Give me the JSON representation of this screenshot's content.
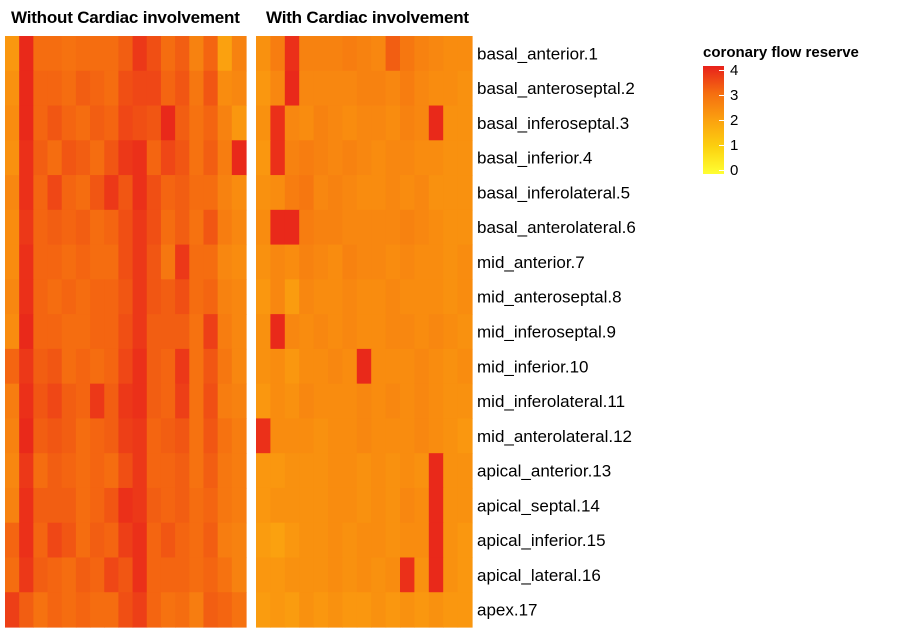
{
  "panels": {
    "left_title": "Without Cardiac involvement",
    "right_title": "With Cardiac involvement"
  },
  "legend": {
    "title": "coronary flow reserve",
    "ticks": [
      "4",
      "3",
      "2",
      "1",
      "0"
    ]
  },
  "chart_data": {
    "type": "heatmap",
    "value_range": [
      0,
      4
    ],
    "color_scale": [
      "#ffff33",
      "#fcd10f",
      "#fba10f",
      "#f56d10",
      "#e8211b"
    ],
    "rows": [
      "basal_anterior.1",
      "basal_anteroseptal.2",
      "basal_inferoseptal.3",
      "basal_inferior.4",
      "basal_inferolateral.5",
      "basal_anterolateral.6",
      "mid_anterior.7",
      "mid_anteroseptal.8",
      "mid_inferoseptal.9",
      "mid_inferior.10",
      "mid_inferolateral.11",
      "mid_anterolateral.12",
      "apical_anterior.13",
      "apical_septal.14",
      "apical_inferior.15",
      "apical_lateral.16",
      "apex.17"
    ],
    "groups": [
      {
        "name": "Without Cardiac involvement",
        "values": [
          [
            2.2,
            3.9,
            3.0,
            3.0,
            2.9,
            3.0,
            3.0,
            3.0,
            3.2,
            3.7,
            3.4,
            3.0,
            3.2,
            2.6,
            3.1,
            2.0,
            2.6
          ],
          [
            2.3,
            3.9,
            3.1,
            3.1,
            3.0,
            3.2,
            3.1,
            3.0,
            3.4,
            3.5,
            3.5,
            3.1,
            3.3,
            2.8,
            3.3,
            2.4,
            2.5
          ],
          [
            2.4,
            3.9,
            3.1,
            3.3,
            3.1,
            3.0,
            3.2,
            3.1,
            3.5,
            3.4,
            3.3,
            3.9,
            3.2,
            2.9,
            3.1,
            2.6,
            2.2
          ],
          [
            2.3,
            3.8,
            3.2,
            3.0,
            3.3,
            3.2,
            3.0,
            3.3,
            3.7,
            3.8,
            3.1,
            3.5,
            3.3,
            2.9,
            3.2,
            2.7,
            3.9
          ],
          [
            2.5,
            3.8,
            3.1,
            3.5,
            3.1,
            3.0,
            3.3,
            3.7,
            3.3,
            3.8,
            3.4,
            3.1,
            3.2,
            3.0,
            3.0,
            2.6,
            2.4
          ],
          [
            2.4,
            3.7,
            3.1,
            3.2,
            3.1,
            3.2,
            3.0,
            3.1,
            3.4,
            3.7,
            3.4,
            3.0,
            3.2,
            2.9,
            3.3,
            2.7,
            2.5
          ],
          [
            2.4,
            3.8,
            3.1,
            3.1,
            3.0,
            3.1,
            3.0,
            3.0,
            3.4,
            3.7,
            3.3,
            2.8,
            3.7,
            3.0,
            3.0,
            2.5,
            2.4
          ],
          [
            2.5,
            3.8,
            3.1,
            3.0,
            3.1,
            3.0,
            3.1,
            3.1,
            3.3,
            3.7,
            3.3,
            3.2,
            3.4,
            3.0,
            3.1,
            2.6,
            2.5
          ],
          [
            2.4,
            3.9,
            3.1,
            3.1,
            3.0,
            3.0,
            3.1,
            3.1,
            3.4,
            3.7,
            3.2,
            3.2,
            3.2,
            2.9,
            3.6,
            2.7,
            2.5
          ],
          [
            3.1,
            3.7,
            3.2,
            3.3,
            3.0,
            3.1,
            3.0,
            3.1,
            3.5,
            3.8,
            3.2,
            3.1,
            3.7,
            2.9,
            3.3,
            2.8,
            2.5
          ],
          [
            2.7,
            3.8,
            3.3,
            3.5,
            3.2,
            3.1,
            3.7,
            3.2,
            3.7,
            3.8,
            3.2,
            3.1,
            3.6,
            2.9,
            3.4,
            2.7,
            2.6
          ],
          [
            2.6,
            3.9,
            3.2,
            3.3,
            3.2,
            3.0,
            3.1,
            3.2,
            3.6,
            3.7,
            3.1,
            3.2,
            3.3,
            2.9,
            3.3,
            2.9,
            2.7
          ],
          [
            2.5,
            3.7,
            3.0,
            3.2,
            3.1,
            3.0,
            3.1,
            3.0,
            3.4,
            3.7,
            3.1,
            3.1,
            3.2,
            2.9,
            3.2,
            2.8,
            2.7
          ],
          [
            2.6,
            3.8,
            3.2,
            3.2,
            3.2,
            3.0,
            3.1,
            3.3,
            3.8,
            3.7,
            3.2,
            3.1,
            3.2,
            3.0,
            3.1,
            2.8,
            2.7
          ],
          [
            3.1,
            3.8,
            3.1,
            3.5,
            3.3,
            3.0,
            3.2,
            3.1,
            3.6,
            3.8,
            3.1,
            3.3,
            3.1,
            3.0,
            3.2,
            2.7,
            2.6
          ],
          [
            3.0,
            3.7,
            3.2,
            3.1,
            3.0,
            3.2,
            3.1,
            3.5,
            3.3,
            3.8,
            3.1,
            3.1,
            3.1,
            3.0,
            3.1,
            2.9,
            2.6
          ],
          [
            3.6,
            3.2,
            2.9,
            3.1,
            3.0,
            3.1,
            3.0,
            3.0,
            3.4,
            3.6,
            3.1,
            2.9,
            3.0,
            2.7,
            3.2,
            3.1,
            2.9
          ]
        ]
      },
      {
        "name": "With Cardiac involvement",
        "values": [
          [
            2.3,
            2.7,
            3.8,
            2.6,
            2.6,
            2.6,
            2.7,
            2.6,
            2.5,
            3.2,
            2.8,
            2.6,
            2.5,
            2.4,
            2.4
          ],
          [
            2.2,
            2.5,
            3.9,
            2.5,
            2.5,
            2.5,
            2.5,
            2.6,
            2.6,
            2.5,
            2.7,
            2.5,
            2.4,
            2.4,
            2.3
          ],
          [
            2.3,
            3.8,
            2.5,
            2.4,
            2.6,
            2.5,
            2.4,
            2.5,
            2.5,
            2.4,
            2.6,
            2.5,
            3.9,
            2.3,
            2.3
          ],
          [
            2.2,
            3.8,
            2.6,
            2.7,
            2.6,
            2.5,
            2.6,
            2.5,
            2.4,
            2.5,
            2.5,
            2.4,
            2.4,
            2.3,
            2.3
          ],
          [
            2.3,
            2.4,
            2.7,
            2.8,
            2.5,
            2.6,
            2.5,
            2.4,
            2.4,
            2.5,
            2.4,
            2.5,
            2.3,
            2.3,
            2.3
          ],
          [
            2.4,
            3.9,
            3.9,
            2.7,
            2.6,
            2.6,
            2.5,
            2.5,
            2.5,
            2.5,
            2.6,
            2.5,
            2.4,
            2.3,
            2.3
          ],
          [
            2.3,
            2.5,
            2.4,
            2.6,
            2.5,
            2.4,
            2.6,
            2.5,
            2.5,
            2.4,
            2.5,
            2.4,
            2.4,
            2.3,
            2.4
          ],
          [
            2.2,
            2.5,
            2.1,
            2.5,
            2.4,
            2.4,
            2.5,
            2.4,
            2.4,
            2.5,
            2.4,
            2.4,
            2.4,
            2.3,
            2.4
          ],
          [
            2.3,
            3.9,
            2.5,
            2.4,
            2.5,
            2.4,
            2.5,
            2.4,
            2.4,
            2.5,
            2.5,
            2.4,
            2.5,
            2.4,
            2.3
          ],
          [
            2.3,
            2.4,
            2.2,
            2.4,
            2.4,
            2.5,
            2.4,
            3.9,
            2.4,
            2.4,
            2.4,
            2.5,
            2.4,
            2.3,
            2.4
          ],
          [
            2.2,
            2.4,
            2.3,
            2.5,
            2.4,
            2.4,
            2.4,
            2.5,
            2.4,
            2.5,
            2.4,
            2.5,
            2.4,
            2.3,
            2.3
          ],
          [
            3.8,
            2.4,
            2.4,
            2.4,
            2.3,
            2.4,
            2.4,
            2.5,
            2.4,
            2.4,
            2.4,
            2.5,
            2.4,
            2.3,
            2.2
          ],
          [
            2.2,
            2.2,
            2.3,
            2.3,
            2.3,
            2.4,
            2.4,
            2.3,
            2.4,
            2.3,
            2.4,
            2.3,
            3.9,
            2.3,
            2.3
          ],
          [
            2.2,
            2.3,
            2.3,
            2.3,
            2.3,
            2.4,
            2.4,
            2.3,
            2.4,
            2.3,
            2.5,
            2.4,
            3.9,
            2.3,
            2.3
          ],
          [
            2.1,
            2.0,
            2.2,
            2.3,
            2.3,
            2.4,
            2.3,
            2.4,
            2.4,
            2.3,
            2.4,
            2.4,
            3.9,
            2.3,
            2.2
          ],
          [
            2.2,
            2.2,
            2.3,
            2.3,
            2.3,
            2.4,
            2.3,
            2.4,
            2.3,
            2.4,
            3.8,
            2.3,
            3.9,
            2.3,
            2.2
          ],
          [
            2.1,
            2.2,
            2.1,
            2.3,
            2.2,
            2.3,
            2.2,
            2.2,
            2.3,
            2.2,
            2.3,
            2.2,
            2.3,
            2.2,
            2.2
          ]
        ]
      }
    ]
  }
}
